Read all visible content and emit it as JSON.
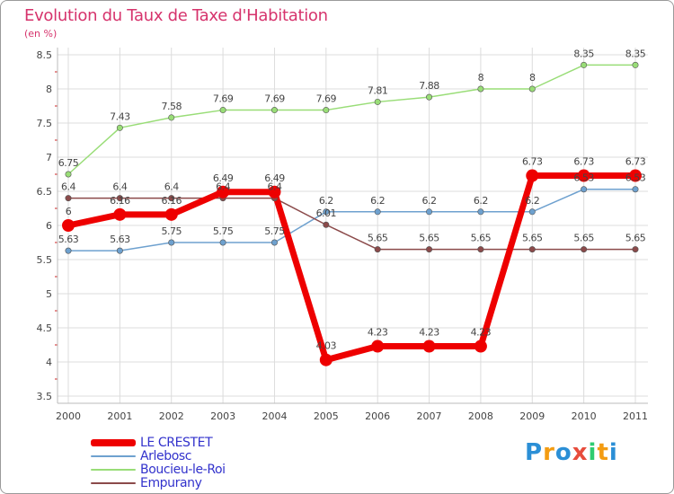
{
  "chart_data": {
    "type": "line",
    "title": "Evolution du Taux de Taxe d'Habitation",
    "subtitle": "(en %)",
    "xlabel": "",
    "ylabel": "",
    "categories": [
      "2000",
      "2001",
      "2002",
      "2003",
      "2004",
      "2005",
      "2006",
      "2007",
      "2008",
      "2009",
      "2010",
      "2011"
    ],
    "ylim": [
      3.5,
      8.5
    ],
    "yticks": [
      "3.5",
      "4",
      "4.5",
      "5",
      "5.5",
      "6",
      "6.5",
      "7",
      "7.5",
      "8",
      "8.5"
    ],
    "legend_position": "bottom-left",
    "series": [
      {
        "name": "LE CRESTET",
        "color": "#ee0000",
        "values": [
          6,
          6.16,
          6.16,
          6.49,
          6.49,
          4.03,
          4.23,
          4.23,
          4.23,
          6.73,
          6.73,
          6.73
        ],
        "labels": [
          "6",
          "6.16",
          "6.16",
          "6.49",
          "6.49",
          "4.03",
          "4.23",
          "4.23",
          "4.23",
          "6.73",
          "6.73",
          "6.73"
        ]
      },
      {
        "name": "Arlebosc",
        "color": "#6ea1cf",
        "values": [
          5.63,
          5.63,
          5.75,
          5.75,
          5.75,
          6.2,
          6.2,
          6.2,
          6.2,
          6.2,
          6.53,
          6.53
        ],
        "labels": [
          "5.63",
          "5.63",
          "5.75",
          "5.75",
          "5.75",
          "6.2",
          "6.2",
          "6.2",
          "6.2",
          "6.2",
          "6.53",
          "6.53"
        ]
      },
      {
        "name": "Boucieu-le-Roi",
        "color": "#99dd77",
        "values": [
          6.75,
          7.43,
          7.58,
          7.69,
          7.69,
          7.69,
          7.81,
          7.88,
          8,
          8,
          8.35,
          8.35
        ],
        "labels": [
          "6.75",
          "7.43",
          "7.58",
          "7.69",
          "7.69",
          "7.69",
          "7.81",
          "7.88",
          "8",
          "8",
          "8.35",
          "8.35"
        ]
      },
      {
        "name": "Empurany",
        "color": "#8b4a4a",
        "values": [
          6.4,
          6.4,
          6.4,
          6.4,
          6.4,
          6.01,
          5.65,
          5.65,
          5.65,
          5.65,
          5.65,
          5.65
        ],
        "labels": [
          "6.4",
          "6.4",
          "6.4",
          "6.4",
          "6.4",
          "6.01",
          "5.65",
          "5.65",
          "5.65",
          "5.65",
          "5.65",
          "5.65"
        ]
      }
    ]
  },
  "brand": {
    "letters": [
      "P",
      "r",
      "o",
      "x",
      "i",
      "t",
      "i"
    ],
    "colors": [
      "#2b8fd6",
      "#f39c12",
      "#2b8fd6",
      "#e74c3c",
      "#2ecc71",
      "#f39c12",
      "#2b8fd6"
    ]
  }
}
